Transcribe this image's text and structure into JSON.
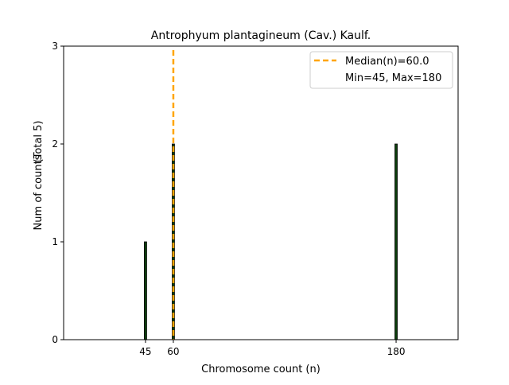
{
  "chart_data": {
    "type": "bar",
    "title": "Antrophyum plantagineum (Cav.) Kaulf.",
    "xlabel": "Chromosome count (n)",
    "ylabel": "Num of counts",
    "ylabel_extra": "(Total 5)",
    "x": [
      45,
      60,
      180
    ],
    "values": [
      1,
      2,
      2
    ],
    "xticks": [
      45,
      60,
      180
    ],
    "yticks": [
      0,
      1,
      2,
      3
    ],
    "xlim": [
      0.9,
      213.4
    ],
    "ylim": [
      0,
      3
    ],
    "grid": false,
    "median": 60.0,
    "legend": {
      "placement": "top-right",
      "entries": [
        "Median(n)=60.0",
        "Min=45, Max=180"
      ]
    },
    "colors": {
      "bar": "#0b3d0b",
      "edge": "#000000",
      "median": "#FFA500"
    }
  }
}
